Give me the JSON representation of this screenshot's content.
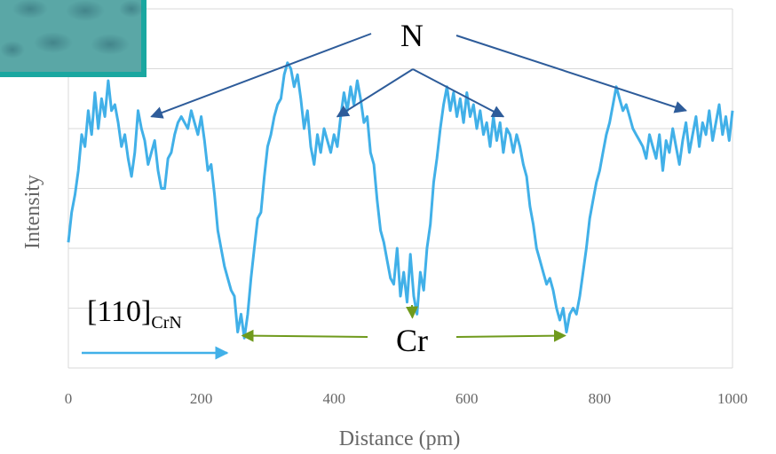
{
  "chart_data": {
    "type": "line",
    "title": "",
    "xlabel": "Distance (pm)",
    "ylabel": "Intensity",
    "xlim": [
      0,
      1000
    ],
    "ylim": [
      0,
      6
    ],
    "xticks": [
      "0",
      "200",
      "400",
      "600",
      "800",
      "1000"
    ],
    "grid": "horizontal",
    "legend": "none",
    "line_color": "#41b0e8",
    "series": [
      {
        "points": [
          [
            0,
            2.1
          ],
          [
            5,
            2.6
          ],
          [
            10,
            2.9
          ],
          [
            15,
            3.3
          ],
          [
            20,
            3.9
          ],
          [
            25,
            3.7
          ],
          [
            30,
            4.3
          ],
          [
            35,
            3.9
          ],
          [
            40,
            4.6
          ],
          [
            45,
            4.0
          ],
          [
            50,
            4.5
          ],
          [
            55,
            4.2
          ],
          [
            60,
            4.8
          ],
          [
            65,
            4.3
          ],
          [
            70,
            4.4
          ],
          [
            75,
            4.1
          ],
          [
            80,
            3.7
          ],
          [
            85,
            3.9
          ],
          [
            90,
            3.5
          ],
          [
            95,
            3.2
          ],
          [
            100,
            3.6
          ],
          [
            105,
            4.3
          ],
          [
            110,
            4.0
          ],
          [
            115,
            3.8
          ],
          [
            120,
            3.4
          ],
          [
            125,
            3.6
          ],
          [
            130,
            3.8
          ],
          [
            135,
            3.3
          ],
          [
            140,
            3.0
          ],
          [
            145,
            3.0
          ],
          [
            150,
            3.5
          ],
          [
            155,
            3.6
          ],
          [
            160,
            3.9
          ],
          [
            165,
            4.1
          ],
          [
            170,
            4.2
          ],
          [
            175,
            4.1
          ],
          [
            180,
            4.0
          ],
          [
            185,
            4.3
          ],
          [
            190,
            4.1
          ],
          [
            195,
            3.9
          ],
          [
            200,
            4.2
          ],
          [
            205,
            3.8
          ],
          [
            210,
            3.3
          ],
          [
            215,
            3.4
          ],
          [
            220,
            2.9
          ],
          [
            225,
            2.3
          ],
          [
            230,
            2.0
          ],
          [
            235,
            1.7
          ],
          [
            240,
            1.5
          ],
          [
            245,
            1.3
          ],
          [
            250,
            1.2
          ],
          [
            255,
            0.6
          ],
          [
            260,
            0.9
          ],
          [
            265,
            0.5
          ],
          [
            270,
            0.9
          ],
          [
            275,
            1.5
          ],
          [
            280,
            2.0
          ],
          [
            285,
            2.5
          ],
          [
            290,
            2.6
          ],
          [
            295,
            3.2
          ],
          [
            300,
            3.7
          ],
          [
            305,
            3.9
          ],
          [
            310,
            4.2
          ],
          [
            315,
            4.4
          ],
          [
            320,
            4.5
          ],
          [
            325,
            4.9
          ],
          [
            330,
            5.1
          ],
          [
            335,
            5.0
          ],
          [
            340,
            4.7
          ],
          [
            345,
            4.9
          ],
          [
            350,
            4.5
          ],
          [
            355,
            4.0
          ],
          [
            360,
            4.3
          ],
          [
            365,
            3.7
          ],
          [
            370,
            3.4
          ],
          [
            375,
            3.9
          ],
          [
            380,
            3.6
          ],
          [
            385,
            4.0
          ],
          [
            390,
            3.8
          ],
          [
            395,
            3.6
          ],
          [
            400,
            3.9
          ],
          [
            405,
            3.7
          ],
          [
            410,
            4.2
          ],
          [
            415,
            4.6
          ],
          [
            420,
            4.3
          ],
          [
            425,
            4.7
          ],
          [
            430,
            4.4
          ],
          [
            435,
            4.8
          ],
          [
            440,
            4.5
          ],
          [
            445,
            4.1
          ],
          [
            450,
            4.2
          ],
          [
            455,
            3.6
          ],
          [
            460,
            3.4
          ],
          [
            465,
            2.8
          ],
          [
            470,
            2.3
          ],
          [
            475,
            2.1
          ],
          [
            480,
            1.8
          ],
          [
            485,
            1.5
          ],
          [
            490,
            1.4
          ],
          [
            495,
            2.0
          ],
          [
            500,
            1.2
          ],
          [
            505,
            1.6
          ],
          [
            510,
            1.1
          ],
          [
            515,
            1.9
          ],
          [
            520,
            1.2
          ],
          [
            525,
            0.9
          ],
          [
            530,
            1.6
          ],
          [
            535,
            1.3
          ],
          [
            540,
            2.0
          ],
          [
            545,
            2.4
          ],
          [
            550,
            3.1
          ],
          [
            555,
            3.5
          ],
          [
            560,
            4.0
          ],
          [
            565,
            4.4
          ],
          [
            570,
            4.7
          ],
          [
            575,
            4.3
          ],
          [
            580,
            4.6
          ],
          [
            585,
            4.2
          ],
          [
            590,
            4.5
          ],
          [
            595,
            4.1
          ],
          [
            600,
            4.6
          ],
          [
            605,
            4.2
          ],
          [
            610,
            4.4
          ],
          [
            615,
            4.0
          ],
          [
            620,
            4.3
          ],
          [
            625,
            3.9
          ],
          [
            630,
            4.1
          ],
          [
            635,
            3.7
          ],
          [
            640,
            4.2
          ],
          [
            645,
            3.8
          ],
          [
            650,
            4.1
          ],
          [
            655,
            3.6
          ],
          [
            660,
            4.0
          ],
          [
            665,
            3.9
          ],
          [
            670,
            3.6
          ],
          [
            675,
            3.9
          ],
          [
            680,
            3.7
          ],
          [
            685,
            3.4
          ],
          [
            690,
            3.2
          ],
          [
            695,
            2.7
          ],
          [
            700,
            2.4
          ],
          [
            705,
            2.0
          ],
          [
            710,
            1.8
          ],
          [
            715,
            1.6
          ],
          [
            720,
            1.4
          ],
          [
            725,
            1.5
          ],
          [
            730,
            1.3
          ],
          [
            735,
            1.0
          ],
          [
            740,
            0.8
          ],
          [
            745,
            1.0
          ],
          [
            750,
            0.6
          ],
          [
            755,
            0.9
          ],
          [
            760,
            1.0
          ],
          [
            765,
            0.9
          ],
          [
            770,
            1.2
          ],
          [
            775,
            1.6
          ],
          [
            780,
            2.0
          ],
          [
            785,
            2.5
          ],
          [
            790,
            2.8
          ],
          [
            795,
            3.1
          ],
          [
            800,
            3.3
          ],
          [
            805,
            3.6
          ],
          [
            810,
            3.9
          ],
          [
            815,
            4.1
          ],
          [
            820,
            4.4
          ],
          [
            825,
            4.7
          ],
          [
            830,
            4.5
          ],
          [
            835,
            4.3
          ],
          [
            840,
            4.4
          ],
          [
            845,
            4.2
          ],
          [
            850,
            4.0
          ],
          [
            855,
            3.9
          ],
          [
            860,
            3.8
          ],
          [
            865,
            3.7
          ],
          [
            870,
            3.5
          ],
          [
            875,
            3.9
          ],
          [
            880,
            3.7
          ],
          [
            885,
            3.5
          ],
          [
            890,
            3.9
          ],
          [
            895,
            3.3
          ],
          [
            900,
            3.8
          ],
          [
            905,
            3.6
          ],
          [
            910,
            4.0
          ],
          [
            915,
            3.7
          ],
          [
            920,
            3.4
          ],
          [
            925,
            3.8
          ],
          [
            930,
            4.1
          ],
          [
            935,
            3.6
          ],
          [
            940,
            3.9
          ],
          [
            945,
            4.2
          ],
          [
            950,
            3.7
          ],
          [
            955,
            4.1
          ],
          [
            960,
            3.9
          ],
          [
            965,
            4.3
          ],
          [
            970,
            3.8
          ],
          [
            975,
            4.1
          ],
          [
            980,
            4.4
          ],
          [
            985,
            3.9
          ],
          [
            990,
            4.2
          ],
          [
            995,
            3.8
          ],
          [
            1000,
            4.3
          ]
        ]
      }
    ],
    "annotations": [
      {
        "text": "N",
        "color": "#2e5c9a",
        "arrows_to": [
          [
            125,
            4.2
          ],
          [
            405,
            4.2
          ],
          [
            655,
            4.2
          ],
          [
            930,
            4.3
          ]
        ]
      },
      {
        "text": "Cr",
        "color": "#6f9a1c",
        "arrows_to": [
          [
            262,
            0.6
          ],
          [
            518,
            0.9
          ],
          [
            748,
            0.6
          ]
        ]
      }
    ],
    "direction_label": {
      "main": "[110]",
      "sub": "CrN"
    },
    "direction_arrow_color": "#41b0e8"
  },
  "inset": {
    "name": "micrograph-inset",
    "border_color": "#1aa7a0"
  }
}
